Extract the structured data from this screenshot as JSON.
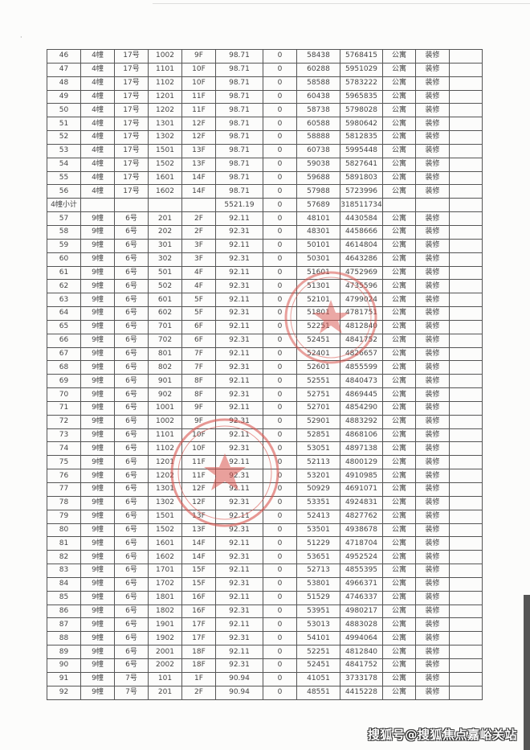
{
  "table": {
    "rows": [
      [
        "46",
        "4幢",
        "17号",
        "1002",
        "9F",
        "98.71",
        "0",
        "58438",
        "5768415",
        "公寓",
        "装修",
        ""
      ],
      [
        "47",
        "4幢",
        "17号",
        "1101",
        "10F",
        "98.71",
        "0",
        "60288",
        "5951029",
        "公寓",
        "装修",
        ""
      ],
      [
        "48",
        "4幢",
        "17号",
        "1102",
        "10F",
        "98.71",
        "0",
        "58588",
        "5783222",
        "公寓",
        "装修",
        ""
      ],
      [
        "49",
        "4幢",
        "17号",
        "1201",
        "11F",
        "98.71",
        "0",
        "60438",
        "5965835",
        "公寓",
        "装修",
        ""
      ],
      [
        "50",
        "4幢",
        "17号",
        "1202",
        "11F",
        "98.71",
        "0",
        "58738",
        "5798028",
        "公寓",
        "装修",
        ""
      ],
      [
        "51",
        "4幢",
        "17号",
        "1301",
        "12F",
        "98.71",
        "0",
        "60588",
        "5980642",
        "公寓",
        "装修",
        ""
      ],
      [
        "52",
        "4幢",
        "17号",
        "1302",
        "12F",
        "98.71",
        "0",
        "58888",
        "5812835",
        "公寓",
        "装修",
        ""
      ],
      [
        "53",
        "4幢",
        "17号",
        "1501",
        "13F",
        "98.71",
        "0",
        "60738",
        "5995448",
        "公寓",
        "装修",
        ""
      ],
      [
        "54",
        "4幢",
        "17号",
        "1502",
        "13F",
        "98.71",
        "0",
        "59038",
        "5827641",
        "公寓",
        "装修",
        ""
      ],
      [
        "55",
        "4幢",
        "17号",
        "1601",
        "14F",
        "98.71",
        "0",
        "59688",
        "5891803",
        "公寓",
        "装修",
        ""
      ],
      [
        "56",
        "4幢",
        "17号",
        "1602",
        "14F",
        "98.71",
        "0",
        "57988",
        "5723996",
        "公寓",
        "装修",
        ""
      ],
      [
        "4幢小计",
        "",
        "",
        "",
        "",
        "5521.19",
        "0",
        "57689",
        "318511734",
        "",
        "",
        ""
      ],
      [
        "57",
        "9幢",
        "6号",
        "201",
        "2F",
        "92.11",
        "0",
        "48101",
        "4430584",
        "公寓",
        "装修",
        ""
      ],
      [
        "58",
        "9幢",
        "6号",
        "202",
        "2F",
        "92.31",
        "0",
        "48301",
        "4458666",
        "公寓",
        "装修",
        ""
      ],
      [
        "59",
        "9幢",
        "6号",
        "301",
        "3F",
        "92.11",
        "0",
        "50101",
        "4614804",
        "公寓",
        "装修",
        ""
      ],
      [
        "60",
        "9幢",
        "6号",
        "302",
        "3F",
        "92.31",
        "0",
        "50301",
        "4643286",
        "公寓",
        "装修",
        ""
      ],
      [
        "61",
        "9幢",
        "6号",
        "501",
        "4F",
        "92.11",
        "0",
        "51601",
        "4752969",
        "公寓",
        "装修",
        ""
      ],
      [
        "62",
        "9幢",
        "6号",
        "502",
        "4F",
        "92.31",
        "0",
        "51301",
        "4735596",
        "公寓",
        "装修",
        ""
      ],
      [
        "63",
        "9幢",
        "6号",
        "601",
        "5F",
        "92.11",
        "0",
        "52101",
        "4799024",
        "公寓",
        "装修",
        ""
      ],
      [
        "64",
        "9幢",
        "6号",
        "602",
        "5F",
        "92.31",
        "0",
        "51801",
        "4781751",
        "公寓",
        "装修",
        ""
      ],
      [
        "65",
        "9幢",
        "6号",
        "701",
        "6F",
        "92.11",
        "0",
        "52251",
        "4812840",
        "公寓",
        "装修",
        ""
      ],
      [
        "66",
        "9幢",
        "6号",
        "702",
        "6F",
        "92.31",
        "0",
        "52451",
        "4841752",
        "公寓",
        "装修",
        ""
      ],
      [
        "67",
        "9幢",
        "6号",
        "801",
        "7F",
        "92.11",
        "0",
        "52401",
        "4826657",
        "公寓",
        "装修",
        ""
      ],
      [
        "68",
        "9幢",
        "6号",
        "802",
        "7F",
        "92.31",
        "0",
        "52601",
        "4855599",
        "公寓",
        "装修",
        ""
      ],
      [
        "69",
        "9幢",
        "6号",
        "901",
        "8F",
        "92.11",
        "0",
        "52551",
        "4840473",
        "公寓",
        "装修",
        ""
      ],
      [
        "70",
        "9幢",
        "6号",
        "902",
        "8F",
        "92.31",
        "0",
        "52751",
        "4869445",
        "公寓",
        "装修",
        ""
      ],
      [
        "71",
        "9幢",
        "6号",
        "1001",
        "9F",
        "92.11",
        "0",
        "52701",
        "4854290",
        "公寓",
        "装修",
        ""
      ],
      [
        "72",
        "9幢",
        "6号",
        "1002",
        "9F",
        "92.31",
        "0",
        "52901",
        "4883292",
        "公寓",
        "装修",
        ""
      ],
      [
        "73",
        "9幢",
        "6号",
        "1101",
        "10F",
        "92.11",
        "0",
        "52851",
        "4868106",
        "公寓",
        "装修",
        ""
      ],
      [
        "74",
        "9幢",
        "6号",
        "1102",
        "10F",
        "92.31",
        "0",
        "53051",
        "4897138",
        "公寓",
        "装修",
        ""
      ],
      [
        "75",
        "9幢",
        "6号",
        "1201",
        "11F",
        "92.11",
        "0",
        "52113",
        "4800129",
        "公寓",
        "装修",
        ""
      ],
      [
        "76",
        "9幢",
        "6号",
        "1202",
        "11F",
        "92.31",
        "0",
        "53201",
        "4910985",
        "公寓",
        "装修",
        ""
      ],
      [
        "77",
        "9幢",
        "6号",
        "1301",
        "12F",
        "92.11",
        "0",
        "50929",
        "4691071",
        "公寓",
        "装修",
        ""
      ],
      [
        "78",
        "9幢",
        "6号",
        "1302",
        "12F",
        "92.31",
        "0",
        "53351",
        "4924831",
        "公寓",
        "装修",
        ""
      ],
      [
        "79",
        "9幢",
        "6号",
        "1501",
        "13F",
        "92.11",
        "0",
        "52413",
        "4827762",
        "公寓",
        "装修",
        ""
      ],
      [
        "80",
        "9幢",
        "6号",
        "1502",
        "13F",
        "92.31",
        "0",
        "53501",
        "4938678",
        "公寓",
        "装修",
        ""
      ],
      [
        "81",
        "9幢",
        "6号",
        "1601",
        "14F",
        "92.11",
        "0",
        "51229",
        "4718704",
        "公寓",
        "装修",
        ""
      ],
      [
        "82",
        "9幢",
        "6号",
        "1602",
        "14F",
        "92.31",
        "0",
        "53651",
        "4952524",
        "公寓",
        "装修",
        ""
      ],
      [
        "83",
        "9幢",
        "6号",
        "1701",
        "15F",
        "92.11",
        "0",
        "52713",
        "4855395",
        "公寓",
        "装修",
        ""
      ],
      [
        "84",
        "9幢",
        "6号",
        "1702",
        "15F",
        "92.31",
        "0",
        "53801",
        "4966371",
        "公寓",
        "装修",
        ""
      ],
      [
        "85",
        "9幢",
        "6号",
        "1801",
        "16F",
        "92.11",
        "0",
        "51529",
        "4746337",
        "公寓",
        "装修",
        ""
      ],
      [
        "86",
        "9幢",
        "6号",
        "1802",
        "16F",
        "92.31",
        "0",
        "53951",
        "4980217",
        "公寓",
        "装修",
        ""
      ],
      [
        "87",
        "9幢",
        "6号",
        "1901",
        "17F",
        "92.11",
        "0",
        "53013",
        "4883028",
        "公寓",
        "装修",
        ""
      ],
      [
        "88",
        "9幢",
        "6号",
        "1902",
        "17F",
        "92.31",
        "0",
        "54101",
        "4994064",
        "公寓",
        "装修",
        ""
      ],
      [
        "89",
        "9幢",
        "6号",
        "2001",
        "18F",
        "92.11",
        "0",
        "52251",
        "4812840",
        "公寓",
        "装修",
        ""
      ],
      [
        "90",
        "9幢",
        "6号",
        "2002",
        "18F",
        "92.31",
        "0",
        "52451",
        "4841752",
        "公寓",
        "装修",
        ""
      ],
      [
        "91",
        "9幢",
        "7号",
        "101",
        "1F",
        "90.94",
        "0",
        "41051",
        "3733178",
        "公寓",
        "装修",
        ""
      ],
      [
        "92",
        "9幢",
        "7号",
        "201",
        "2F",
        "90.94",
        "0",
        "48551",
        "4415228",
        "公寓",
        "装修",
        ""
      ]
    ]
  },
  "watermark": "搜狐号@搜狐焦点嘉峪关站",
  "stamp_color": "#d9534f"
}
